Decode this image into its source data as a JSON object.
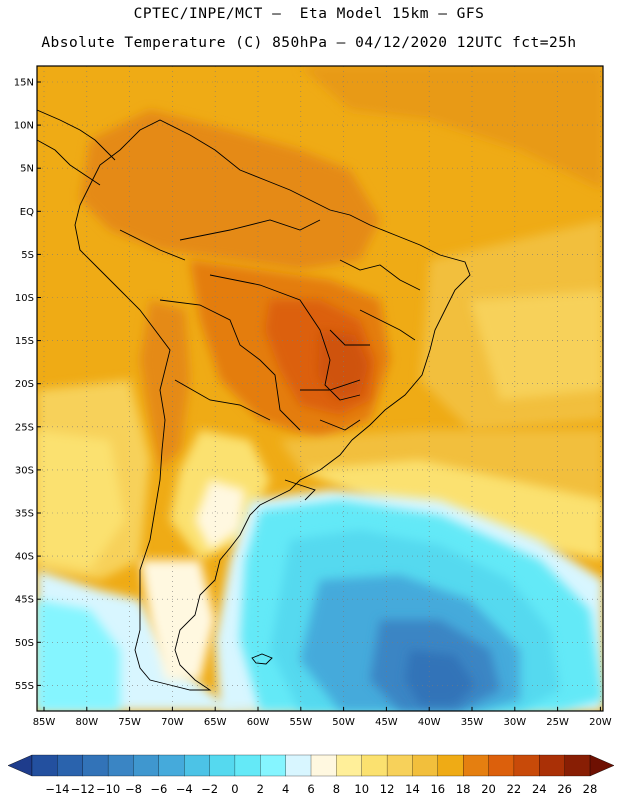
{
  "header": {
    "line1": "CPTEC/INPE/MCT –  Eta Model 15km – GFS",
    "line2": "Absolute Temperature (C) 850hPa – 04/12/2020 12UTC fct=25h"
  },
  "map": {
    "field": "850hPa temperature",
    "lat_labels": [
      "15N",
      "10N",
      "5N",
      "EQ",
      "5S",
      "10S",
      "15S",
      "20S",
      "25S",
      "30S",
      "35S",
      "40S",
      "45S",
      "50S",
      "55S"
    ],
    "lon_labels": [
      "85W",
      "80W",
      "75W",
      "70W",
      "65W",
      "60W",
      "55W",
      "50W",
      "45W",
      "40W",
      "35W",
      "30W",
      "25W",
      "20W"
    ]
  },
  "colorbar": {
    "labels": [
      "-14",
      "-12",
      "-10",
      "-8",
      "-6",
      "-4",
      "-2",
      "0",
      "2",
      "4",
      "6",
      "8",
      "10",
      "12",
      "14",
      "16",
      "18",
      "20",
      "22",
      "24",
      "26",
      "28"
    ],
    "colors": [
      "#1e3c8c",
      "#23509f",
      "#2a63ad",
      "#3273b8",
      "#3a85c4",
      "#3f97cf",
      "#45aadb",
      "#4cc3e6",
      "#55d9ef",
      "#64e9f7",
      "#85f5ff",
      "#d8f6ff",
      "#fff8e0",
      "#ffef99",
      "#fbe16f",
      "#f7d15a",
      "#f2bf3c",
      "#efab15",
      "#e57f10",
      "#dc600c",
      "#c84a09",
      "#aa3006",
      "#881e04",
      "#6e1002"
    ]
  },
  "colors": {
    "land_border": "#000000",
    "grid": "#7a7a7a"
  }
}
